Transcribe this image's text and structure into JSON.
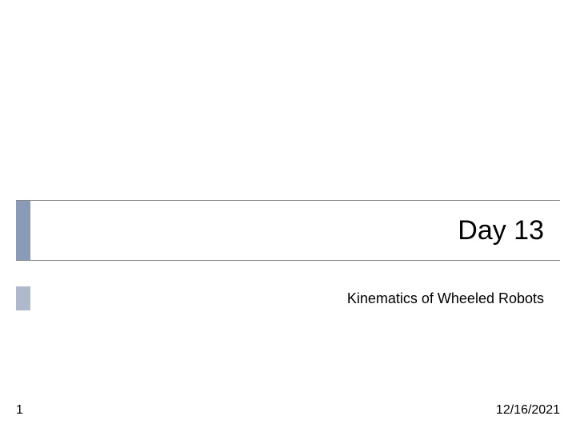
{
  "slide": {
    "title": "Day 13",
    "subtitle": "Kinematics of Wheeled Robots",
    "page_number": "1",
    "date": "12/16/2021"
  },
  "style": {
    "title_accent_color": "#8a9bb8",
    "subtitle_accent_color": "#aeb9cc",
    "title_fontsize": 34,
    "subtitle_fontsize": 18,
    "footer_fontsize": 16,
    "divider_color": "#888888",
    "background_color": "#ffffff",
    "text_color": "#000000"
  }
}
